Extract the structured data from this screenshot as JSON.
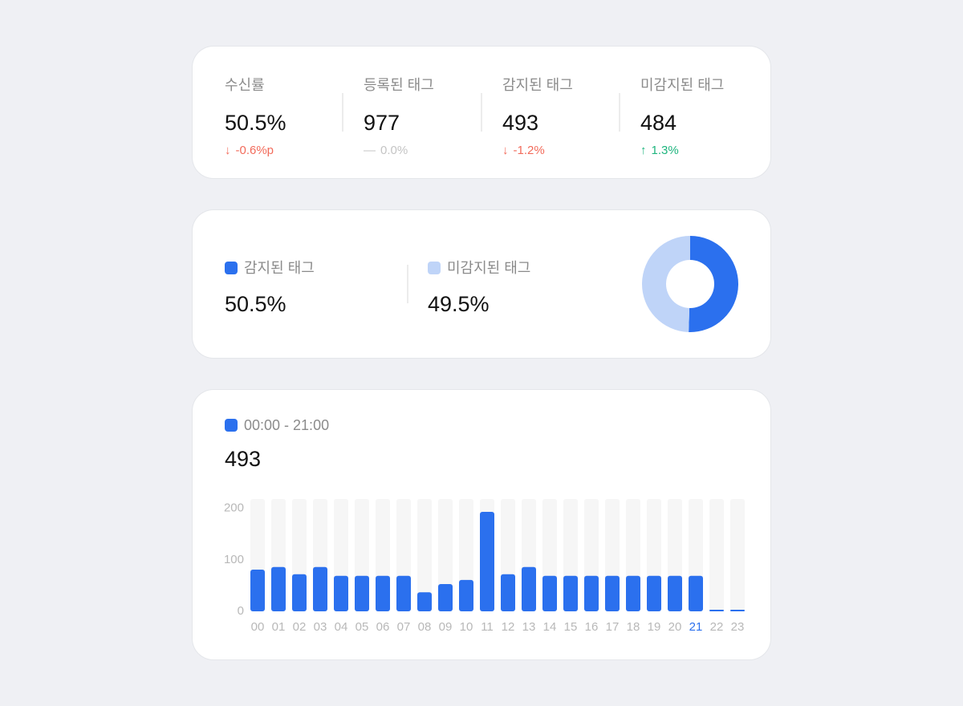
{
  "summary": [
    {
      "label": "수신률",
      "value": "50.5%",
      "change": "-0.6%p",
      "trend": "down"
    },
    {
      "label": "등록된 태그",
      "value": "977",
      "change": "0.0%",
      "trend": "flat"
    },
    {
      "label": "감지된 태그",
      "value": "493",
      "change": "-1.2%",
      "trend": "down"
    },
    {
      "label": "미감지된 태그",
      "value": "484",
      "change": "1.3%",
      "trend": "up"
    }
  ],
  "colors": {
    "down": "#f26b5b",
    "flat": "#c4c4c4",
    "up": "#1fb57e",
    "primary": "#2b70ee",
    "secondary": "#bfd4f8",
    "track": "#f6f6f6"
  },
  "ratio": {
    "detected": {
      "label": "감지된 태그",
      "value": "50.5%",
      "percent": 50.5
    },
    "undetected": {
      "label": "미감지된 태그",
      "value": "49.5%",
      "percent": 49.5
    }
  },
  "hourly": {
    "range_label": "00:00 - 21:00",
    "total": "493",
    "chart_data": {
      "type": "bar",
      "categories": [
        "00",
        "01",
        "02",
        "03",
        "04",
        "05",
        "06",
        "07",
        "08",
        "09",
        "10",
        "11",
        "12",
        "13",
        "14",
        "15",
        "16",
        "17",
        "18",
        "19",
        "20",
        "21",
        "22",
        "23"
      ],
      "values": [
        81,
        86,
        72,
        86,
        69,
        69,
        69,
        69,
        37,
        53,
        61,
        193,
        72,
        86,
        69,
        69,
        69,
        69,
        69,
        69,
        69,
        69,
        0,
        0
      ],
      "highlighted_category": "21",
      "yticks": [
        "0",
        "100",
        "200"
      ],
      "ylim": [
        0,
        218
      ]
    }
  }
}
